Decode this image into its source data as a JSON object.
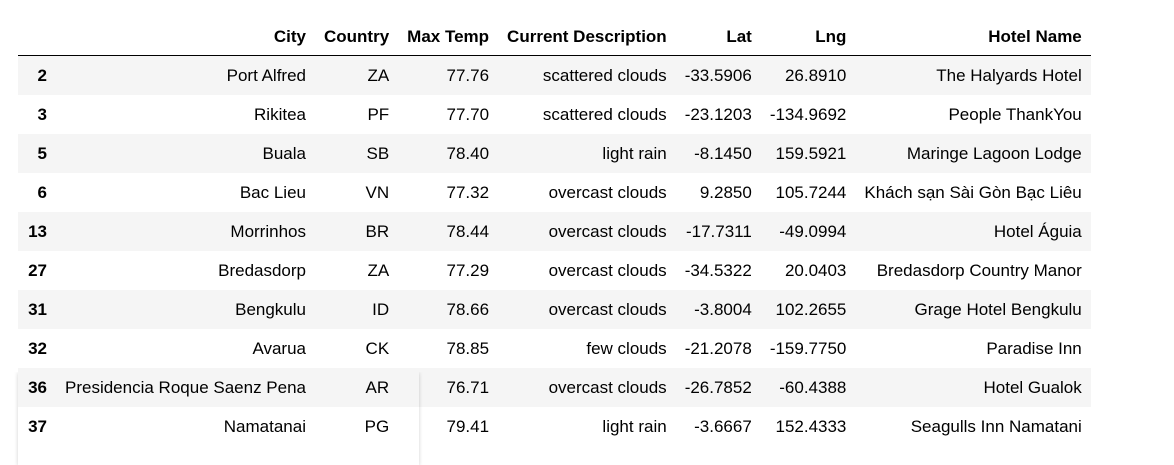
{
  "table": {
    "columns": [
      "",
      "City",
      "Country",
      "Max Temp",
      "Current Description",
      "Lat",
      "Lng",
      "Hotel Name"
    ],
    "rows": [
      {
        "index": "2",
        "city": "Port Alfred",
        "country": "ZA",
        "max_temp": "77.76",
        "description": "scattered clouds",
        "lat": "-33.5906",
        "lng": "26.8910",
        "hotel": "The Halyards Hotel"
      },
      {
        "index": "3",
        "city": "Rikitea",
        "country": "PF",
        "max_temp": "77.70",
        "description": "scattered clouds",
        "lat": "-23.1203",
        "lng": "-134.9692",
        "hotel": "People ThankYou"
      },
      {
        "index": "5",
        "city": "Buala",
        "country": "SB",
        "max_temp": "78.40",
        "description": "light rain",
        "lat": "-8.1450",
        "lng": "159.5921",
        "hotel": "Maringe Lagoon Lodge"
      },
      {
        "index": "6",
        "city": "Bac Lieu",
        "country": "VN",
        "max_temp": "77.32",
        "description": "overcast clouds",
        "lat": "9.2850",
        "lng": "105.7244",
        "hotel": "Khách sạn Sài Gòn Bạc Liêu"
      },
      {
        "index": "13",
        "city": "Morrinhos",
        "country": "BR",
        "max_temp": "78.44",
        "description": "overcast clouds",
        "lat": "-17.7311",
        "lng": "-49.0994",
        "hotel": "Hotel Águia"
      },
      {
        "index": "27",
        "city": "Bredasdorp",
        "country": "ZA",
        "max_temp": "77.29",
        "description": "overcast clouds",
        "lat": "-34.5322",
        "lng": "20.0403",
        "hotel": "Bredasdorp Country Manor"
      },
      {
        "index": "31",
        "city": "Bengkulu",
        "country": "ID",
        "max_temp": "78.66",
        "description": "overcast clouds",
        "lat": "-3.8004",
        "lng": "102.2655",
        "hotel": "Grage Hotel Bengkulu"
      },
      {
        "index": "32",
        "city": "Avarua",
        "country": "CK",
        "max_temp": "78.85",
        "description": "few clouds",
        "lat": "-21.2078",
        "lng": "-159.7750",
        "hotel": "Paradise Inn"
      },
      {
        "index": "36",
        "city": "Presidencia Roque Saenz Pena",
        "country": "AR",
        "max_temp": "76.71",
        "description": "overcast clouds",
        "lat": "-26.7852",
        "lng": "-60.4388",
        "hotel": "Hotel Gualok"
      },
      {
        "index": "37",
        "city": "Namatanai",
        "country": "PG",
        "max_temp": "79.41",
        "description": "light rain",
        "lat": "-3.6667",
        "lng": "152.4333",
        "hotel": "Seagulls Inn Namatani"
      }
    ]
  }
}
